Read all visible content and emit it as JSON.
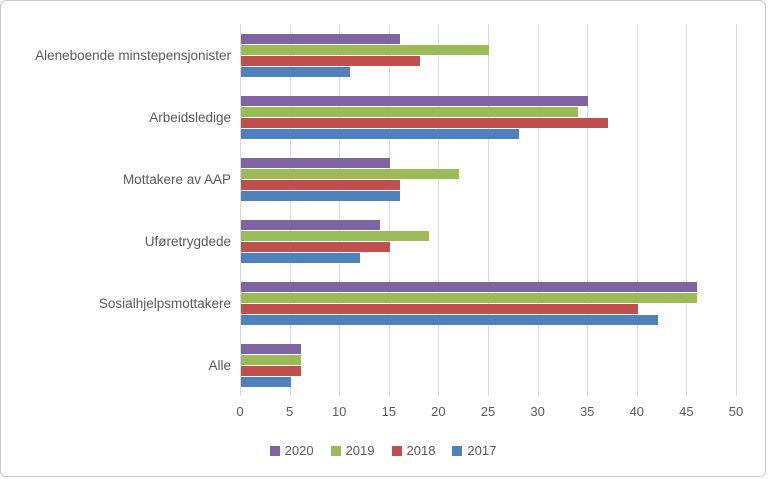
{
  "window": {
    "background": "#ffffff",
    "border_color": "#c9c9c9"
  },
  "chart_data": {
    "type": "bar",
    "orientation": "horizontal",
    "title": "",
    "xlabel": "",
    "ylabel": "",
    "xlim": [
      0,
      50
    ],
    "x_ticks": [
      0,
      5,
      10,
      15,
      20,
      25,
      30,
      35,
      40,
      45,
      50
    ],
    "grid": "vertical",
    "legend_position": "bottom",
    "categories": [
      "Aleneboende minstepensjonister",
      "Arbeidsledige",
      "Mottakere av AAP",
      "Uføretrygdede",
      "Sosialhjelpsmottakere",
      "Alle"
    ],
    "series": [
      {
        "name": "2020",
        "color": "#8064A2",
        "values": [
          16,
          35,
          15,
          14,
          46,
          6
        ]
      },
      {
        "name": "2019",
        "color": "#9BBB59",
        "values": [
          25,
          34,
          22,
          19,
          46,
          6
        ]
      },
      {
        "name": "2018",
        "color": "#C0504D",
        "values": [
          18,
          37,
          16,
          15,
          40,
          6
        ]
      },
      {
        "name": "2017",
        "color": "#4F81BD",
        "values": [
          11,
          28,
          16,
          12,
          42,
          5
        ]
      }
    ],
    "colors": {
      "gridline": "#d9d9d9",
      "axis_text": "#595959"
    }
  }
}
